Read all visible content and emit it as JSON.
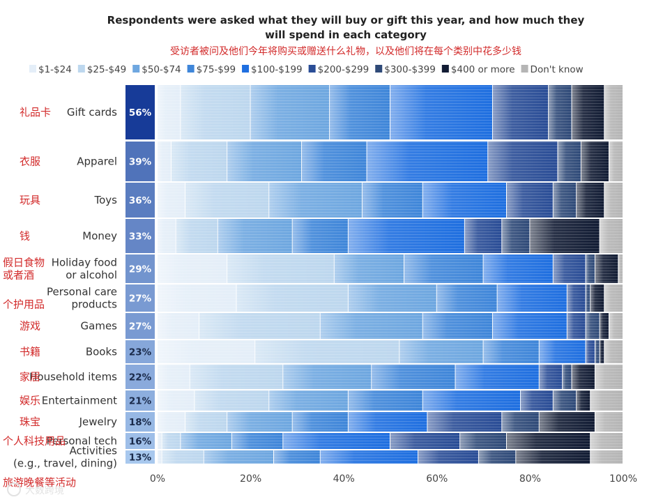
{
  "chart_data": {
    "type": "bar",
    "orientation": "horizontal",
    "stacked": true,
    "title": "Respondents were asked what they will buy or gift this year, and how much they will spend in each category",
    "title_lines": [
      "Respondents were asked what they will buy or gift this year, and how much they",
      "will spend in each category"
    ],
    "subtitle": "受访者被问及他们今年将购买或赠送什么礼物，以及他们将在每个类别中花多少钱",
    "xlim": [
      0,
      100
    ],
    "x_ticks": [
      "0%",
      "20%",
      "40%",
      "60%",
      "80%",
      "100%"
    ],
    "legend_position": "top",
    "legend": [
      "$1-$24",
      "$25-$49",
      "$50-$74",
      "$75-$99",
      "$100-$199",
      "$200-$299",
      "$300-$399",
      "$400 or more",
      "Don't know"
    ],
    "series_colors": [
      "#e4eef8",
      "#bdd7ee",
      "#6ea7e0",
      "#3f86d9",
      "#1f6fe0",
      "#2a4d96",
      "#2f4a78",
      "#121c34",
      "#b5b5b5"
    ],
    "categories": [
      {
        "en": [
          "Gift cards"
        ],
        "cn": [
          "礼品卡"
        ],
        "share": "56%",
        "share_value": 56,
        "values": [
          5,
          15,
          17,
          13,
          22,
          12,
          5,
          7,
          4
        ]
      },
      {
        "en": [
          "Apparel"
        ],
        "cn": [
          "衣服"
        ],
        "share": "39%",
        "share_value": 39,
        "values": [
          3,
          12,
          16,
          14,
          26,
          15,
          5,
          6,
          3
        ]
      },
      {
        "en": [
          "Toys"
        ],
        "cn": [
          "玩具"
        ],
        "share": "36%",
        "share_value": 36,
        "values": [
          6,
          18,
          20,
          13,
          18,
          10,
          5,
          6,
          4
        ]
      },
      {
        "en": [
          "Money"
        ],
        "cn": [
          "钱"
        ],
        "share": "33%",
        "share_value": 33,
        "values": [
          4,
          9,
          16,
          12,
          25,
          8,
          6,
          15,
          5
        ]
      },
      {
        "en": [
          "Holiday food",
          "or alcohol"
        ],
        "cn": [
          "假日食物",
          "或者酒"
        ],
        "share": "29%",
        "share_value": 29,
        "values": [
          15,
          23,
          15,
          17,
          15,
          7,
          2,
          5,
          1
        ]
      },
      {
        "en": [
          "Personal care",
          "products"
        ],
        "cn": [
          "个护用品"
        ],
        "share": "27%",
        "share_value": 27,
        "values": [
          17,
          24,
          19,
          13,
          15,
          4,
          1,
          3,
          4
        ]
      },
      {
        "en": [
          "Games"
        ],
        "cn": [
          "游戏"
        ],
        "share": "27%",
        "share_value": 27,
        "values": [
          9,
          26,
          22,
          15,
          16,
          4,
          3,
          2,
          3
        ]
      },
      {
        "en": [
          "Books"
        ],
        "cn": [
          "书籍"
        ],
        "share": "23%",
        "share_value": 23,
        "values": [
          21,
          31,
          18,
          12,
          10,
          2,
          1,
          1,
          4
        ]
      },
      {
        "en": [
          "Household items"
        ],
        "cn": [
          "家居"
        ],
        "share": "22%",
        "share_value": 22,
        "values": [
          7,
          20,
          19,
          18,
          18,
          5,
          2,
          5,
          6
        ]
      },
      {
        "en": [
          "Entertainment"
        ],
        "cn": [
          "娱乐"
        ],
        "share": "21%",
        "share_value": 21,
        "values": [
          8,
          16,
          17,
          16,
          21,
          7,
          5,
          3,
          7
        ]
      },
      {
        "en": [
          "Jewelry"
        ],
        "cn": [
          "珠宝"
        ],
        "share": "18%",
        "share_value": 18,
        "values": [
          6,
          9,
          14,
          12,
          17,
          16,
          8,
          12,
          6
        ]
      },
      {
        "en": [
          "Personal tech"
        ],
        "cn": [
          "个人科技用品"
        ],
        "share": "16%",
        "share_value": 16,
        "values": [
          1,
          4,
          11,
          11,
          23,
          15,
          10,
          18,
          7
        ]
      },
      {
        "en": [
          "Activities",
          "(e.g., travel, dining)"
        ],
        "cn": [
          "旅游晚餐等活动"
        ],
        "share": "13%",
        "share_value": 13,
        "values": [
          1,
          9,
          15,
          10,
          21,
          13,
          8,
          16,
          7
        ]
      }
    ]
  },
  "watermark": "大数跨境"
}
